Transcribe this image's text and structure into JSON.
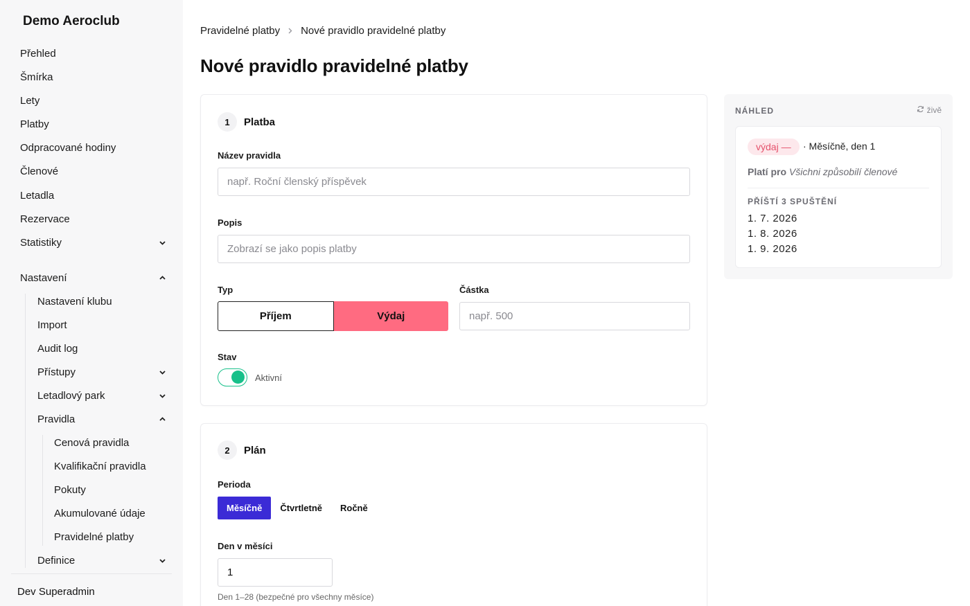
{
  "sidebar": {
    "brand": "Demo Aeroclub",
    "items": [
      {
        "label": "Přehled"
      },
      {
        "label": "Šmírka"
      },
      {
        "label": "Lety"
      },
      {
        "label": "Platby"
      },
      {
        "label": "Odpracované hodiny"
      },
      {
        "label": "Členové"
      },
      {
        "label": "Letadla"
      },
      {
        "label": "Rezervace"
      },
      {
        "label": "Statistiky"
      },
      {
        "label": "Nastavení"
      }
    ],
    "settings": [
      {
        "label": "Nastavení klubu"
      },
      {
        "label": "Import"
      },
      {
        "label": "Audit log"
      },
      {
        "label": "Přístupy"
      },
      {
        "label": "Letadlový park"
      },
      {
        "label": "Pravidla"
      },
      {
        "label": "Definice"
      }
    ],
    "rules": [
      {
        "label": "Cenová pravidla"
      },
      {
        "label": "Kvalifikační pravidla"
      },
      {
        "label": "Pokuty"
      },
      {
        "label": "Akumulované údaje"
      },
      {
        "label": "Pravidelné platby"
      }
    ],
    "user": "Dev Superadmin"
  },
  "breadcrumb": {
    "parent": "Pravidelné platby",
    "current": "Nové pravidlo pravidelné platby"
  },
  "page_title": "Nové pravidlo pravidelné platby",
  "section_payment": {
    "number": "1",
    "title": "Platba",
    "name_label": "Název pravidla",
    "name_placeholder": "např. Roční členský příspěvek",
    "desc_label": "Popis",
    "desc_placeholder": "Zobrazí se jako popis platby",
    "type_label": "Typ",
    "type_income": "Příjem",
    "type_expense": "Výdaj",
    "amount_label": "Částka",
    "amount_placeholder": "např. 500",
    "status_label": "Stav",
    "status_value": "Aktivní"
  },
  "section_plan": {
    "number": "2",
    "title": "Plán",
    "period_label": "Perioda",
    "periods": [
      "Měsíčně",
      "Čtvrtletně",
      "Ročně"
    ],
    "day_label": "Den v měsíci",
    "day_value": "1",
    "day_hint": "Den 1–28 (bezpečné pro všechny měsíce)"
  },
  "preview": {
    "title": "NÁHLED",
    "live": "živě",
    "badge": "výdaj —",
    "frequency": "· Měsíčně, den 1",
    "applies_label": "Platí pro",
    "applies_value": "Všichni způsobilí členové",
    "next_label": "PŘÍŠTÍ 3 SPUŠTĚNÍ",
    "dates": [
      "1. 7. 2026",
      "1. 8. 2026",
      "1. 9. 2026"
    ]
  },
  "colors": {
    "accent": "#3b2bd6",
    "expense": "#ff6b81",
    "toggle_on": "#18c08a"
  }
}
